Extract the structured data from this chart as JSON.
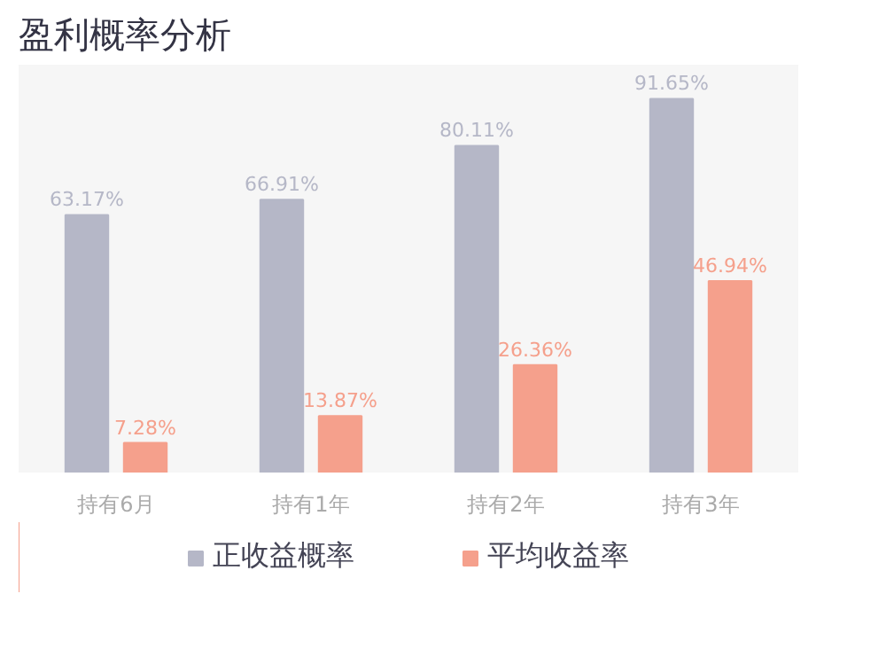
{
  "chart_data": {
    "type": "bar",
    "title": "盈利概率分析",
    "categories": [
      "持有6月",
      "持有1年",
      "持有2年",
      "持有3年"
    ],
    "series": [
      {
        "name": "正收益概率",
        "color": "#b5b7c7",
        "values": [
          63.17,
          66.91,
          80.11,
          91.65
        ],
        "value_labels": [
          "63.17%",
          "66.91%",
          "80.11%",
          "91.65%"
        ]
      },
      {
        "name": "平均收益率",
        "color": "#f5a08c",
        "values": [
          7.28,
          13.87,
          26.36,
          46.94
        ],
        "value_labels": [
          "7.28%",
          "13.87%",
          "26.36%",
          "46.94%"
        ]
      }
    ],
    "ylim": [
      0,
      100
    ],
    "tick_labels": "x",
    "legend": "bottom"
  }
}
